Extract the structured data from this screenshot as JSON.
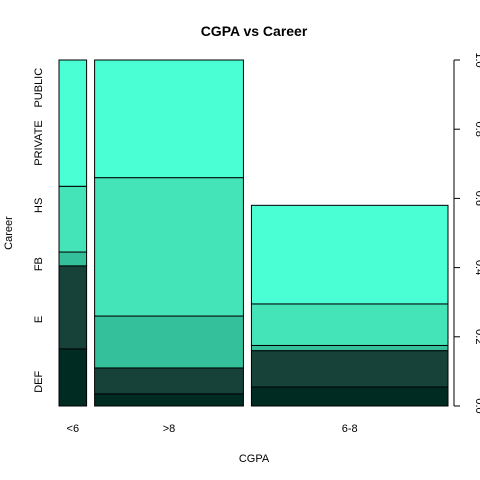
{
  "chart_data": {
    "type": "mosaic",
    "title": "CGPA vs Career",
    "xlabel": "CGPA",
    "ylabel": "Career",
    "x_categories": [
      "<6",
      ">8",
      "6-8"
    ],
    "x_widths": [
      0.074,
      0.399,
      0.527
    ],
    "y_categories": [
      "DEF",
      "E",
      "FB",
      "HS",
      "PRIVATE",
      "PUBLIC"
    ],
    "y_tick_labels": [
      "DEF",
      "E",
      "FB",
      "HS",
      "PRIVATE",
      "PUBLIC"
    ],
    "y_tick_positions": [
      0.07,
      0.25,
      0.41,
      0.58,
      0.76,
      0.92
    ],
    "right_axis_ticks": [
      "0.0",
      "0.2",
      "0.4",
      "0.6",
      "0.8",
      "1.0"
    ],
    "right_axis_values": [
      0.0,
      0.2,
      0.4,
      0.6,
      0.8,
      1.0
    ],
    "ylim": [
      0,
      1
    ],
    "colors": {
      "DEF": "#002b22",
      "E": "#17423a",
      "FB": "#33c09b",
      "HS": "#44e4b8",
      "PRIVATE": "#4affd4",
      "PUBLIC": "#4affd4"
    },
    "columns": [
      {
        "name": "<6",
        "values": [
          0.165,
          0.24,
          0.04,
          0.19,
          0.0,
          0.365
        ]
      },
      {
        "name": ">8",
        "values": [
          0.035,
          0.075,
          0.15,
          0.4,
          0.0,
          0.34
        ]
      },
      {
        "name": "6-8",
        "values": [
          0.055,
          0.105,
          0.015,
          0.12,
          0.0,
          0.285
        ]
      }
    ],
    "grid": false,
    "legend": "none"
  }
}
